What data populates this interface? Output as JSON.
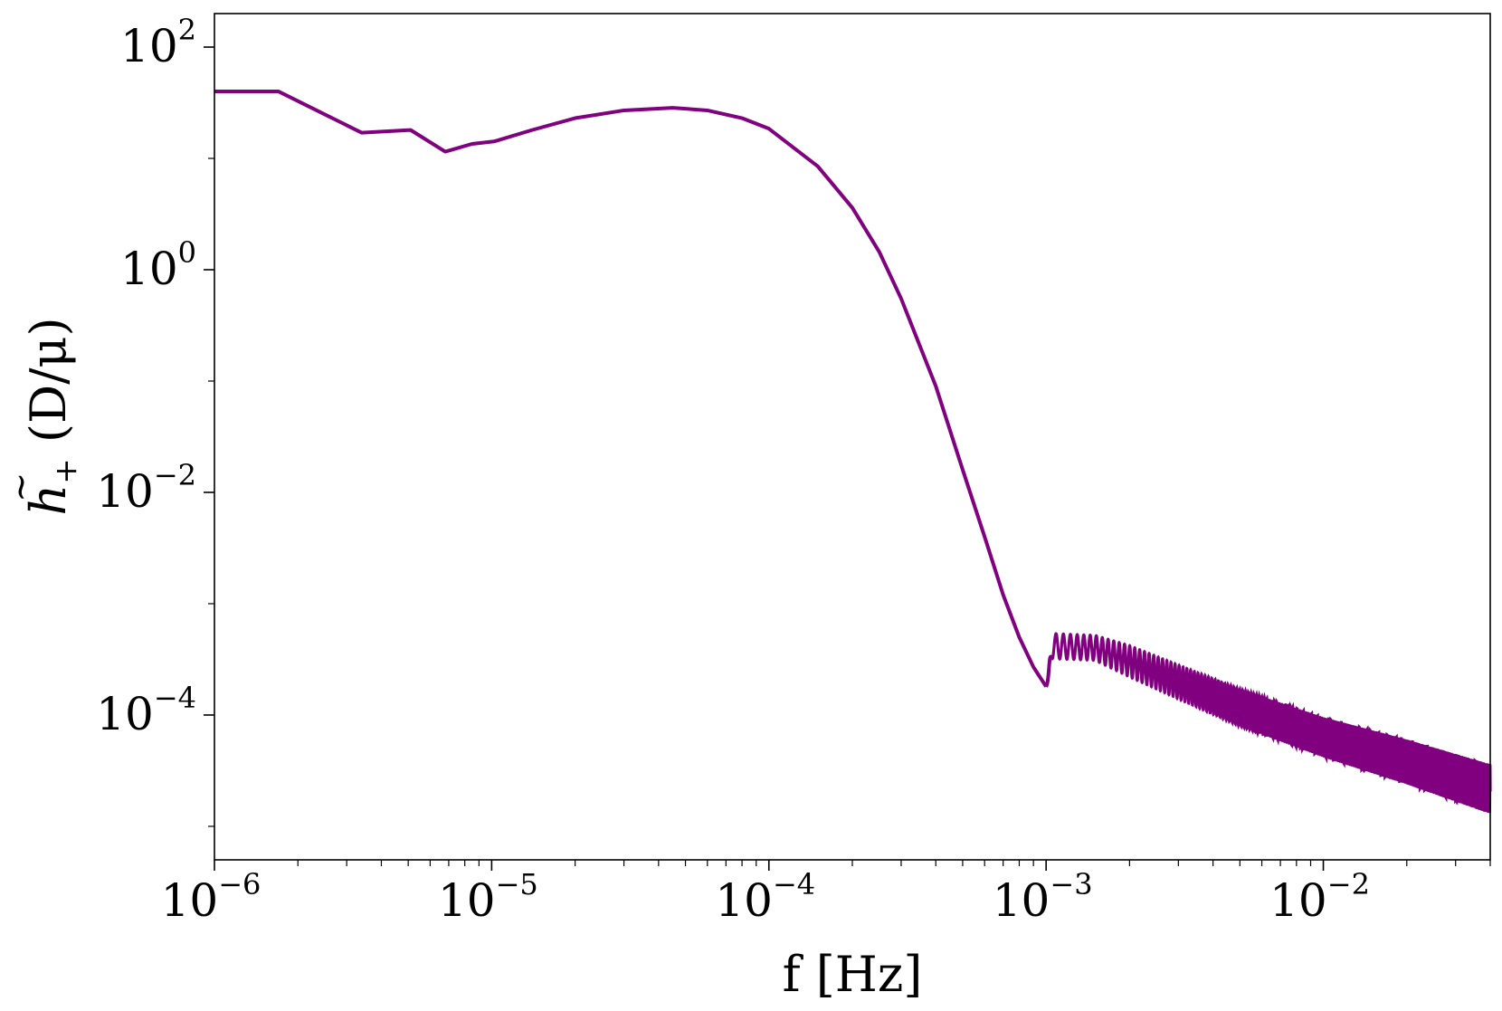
{
  "chart_data": {
    "type": "line",
    "title": "",
    "xlabel": "f [Hz]",
    "ylabel": {
      "symbol": "h",
      "accent": "~",
      "subscript": "+",
      "units": "(D/μ)"
    },
    "xscale": "log",
    "yscale": "log",
    "xlim": [
      1e-06,
      0.04
    ],
    "ylim": [
      5e-06,
      200
    ],
    "grid": false,
    "legend": null,
    "line_color": "#800080",
    "x_ticks": [
      {
        "value": 1e-06,
        "base": "10",
        "exp": "−6"
      },
      {
        "value": 1e-05,
        "base": "10",
        "exp": "−5"
      },
      {
        "value": 0.0001,
        "base": "10",
        "exp": "−4"
      },
      {
        "value": 0.001,
        "base": "10",
        "exp": "−3"
      },
      {
        "value": 0.01,
        "base": "10",
        "exp": "−2"
      }
    ],
    "y_ticks": [
      {
        "value": 0.0001,
        "base": "10",
        "exp": "−4"
      },
      {
        "value": 0.01,
        "base": "10",
        "exp": "−2"
      },
      {
        "value": 1,
        "base": "10",
        "exp": "0"
      },
      {
        "value": 100,
        "base": "10",
        "exp": "2"
      }
    ],
    "series": [
      {
        "points": [
          [
            1e-06,
            40
          ],
          [
            1.7e-06,
            40
          ],
          [
            3.4e-06,
            17
          ],
          [
            5.1e-06,
            18
          ],
          [
            6.8e-06,
            11.5
          ],
          [
            8.5e-06,
            13.5
          ],
          [
            1.02e-05,
            14.2
          ],
          [
            1.4e-05,
            18
          ],
          [
            2e-05,
            23
          ],
          [
            3e-05,
            27
          ],
          [
            4.5e-05,
            28.5
          ],
          [
            6e-05,
            27
          ],
          [
            8e-05,
            23
          ],
          [
            0.0001,
            18.5
          ],
          [
            0.00015,
            8.5
          ],
          [
            0.0002,
            3.6
          ],
          [
            0.00025,
            1.45
          ],
          [
            0.0003,
            0.55
          ],
          [
            0.0004,
            0.09
          ],
          [
            0.0005,
            0.016
          ],
          [
            0.0006,
            0.004
          ],
          [
            0.0007,
            0.0012
          ],
          [
            0.0008,
            0.0005
          ],
          [
            0.0009,
            0.00027
          ],
          [
            0.001,
            0.00018
          ],
          [
            0.0015,
            0.00011
          ],
          [
            0.0025,
            7.5e-05
          ],
          [
            0.005,
            5e-05
          ],
          [
            0.01,
            3.2e-05
          ],
          [
            0.02,
            2e-05
          ],
          [
            0.04,
            1.25e-05
          ]
        ],
        "oscillation_band": {
          "start_freq": 0.001,
          "end_freq": 0.04,
          "lower": [
            [
              0.00105,
              0.00032
            ],
            [
              0.0015,
              0.00031
            ],
            [
              0.002,
              0.00022
            ],
            [
              0.003,
              0.00014
            ],
            [
              0.005,
              8e-05
            ],
            [
              0.01,
              4.2e-05
            ],
            [
              0.02,
              2.4e-05
            ],
            [
              0.04,
              1.3e-05
            ]
          ],
          "upper": [
            [
              0.00105,
              0.00054
            ],
            [
              0.0015,
              0.00052
            ],
            [
              0.002,
              0.00042
            ],
            [
              0.003,
              0.00028
            ],
            [
              0.005,
              0.00017
            ],
            [
              0.01,
              9.5e-05
            ],
            [
              0.02,
              6e-05
            ],
            [
              0.04,
              3.6e-05
            ]
          ]
        }
      }
    ]
  }
}
